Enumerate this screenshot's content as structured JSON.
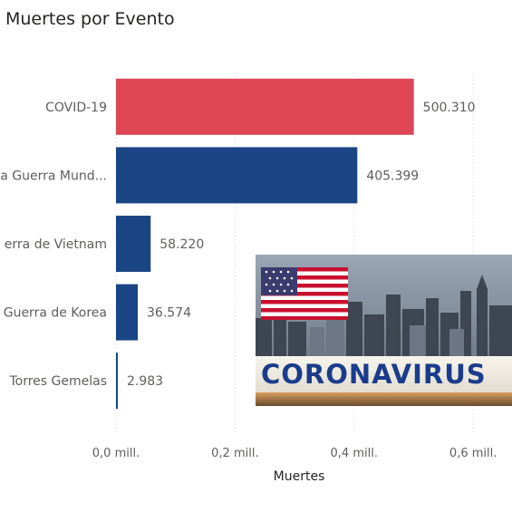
{
  "chart_data": {
    "type": "bar",
    "orientation": "horizontal",
    "title": "Muertes por Evento",
    "xlabel": "Muertes",
    "ylabel": "",
    "categories": [
      "COVID-19",
      "a Guerra Mund...",
      "erra de Vietnam",
      "Guerra de Korea",
      "Torres Gemelas"
    ],
    "values": [
      500310,
      405399,
      58220,
      36574,
      2983
    ],
    "value_labels": [
      "500.310",
      "405.399",
      "58.220",
      "36.574",
      "2.983"
    ],
    "colors": [
      "#de4654",
      "#1a4584",
      "#1a4584",
      "#1a4584",
      "#1a4584"
    ],
    "xlim": [
      0,
      650000
    ],
    "xticks": [
      0,
      200000,
      400000,
      600000
    ],
    "xtick_labels": [
      "0,0 mill.",
      "0,2 mill.",
      "0,4 mill.",
      "0,6 mill."
    ],
    "grid": "vertical-dotted",
    "legend": "none"
  },
  "overlay": {
    "text": "CORONAVIRUS",
    "flag_colors": {
      "red": "#c8102e",
      "white": "#ffffff",
      "blue": "#3c3b6e"
    },
    "text_color": "#1a3c8c",
    "band_color": "#f3f0e8"
  }
}
